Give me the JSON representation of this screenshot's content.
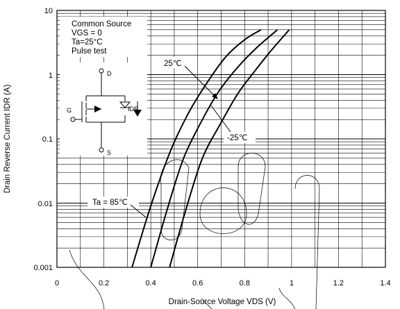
{
  "chart_data": {
    "type": "line",
    "xlabel": "Drain-Source Voltage VDS (V)",
    "ylabel": "Drain Reverse Current   IDR (A)",
    "xlim": [
      0,
      1.4
    ],
    "ylim": [
      0.001,
      10
    ],
    "y_scale": "log",
    "grid": true,
    "x_ticks": [
      "0",
      "0.2",
      "0.4",
      "0.6",
      "0.8",
      "1",
      "1.2",
      "1.4"
    ],
    "y_ticks": [
      "0.001",
      "0.01",
      "0.1",
      "1",
      "10"
    ],
    "conditions": [
      "Common Source",
      "VGS = 0",
      "Ta=25°C",
      "Pulse test"
    ],
    "series": [
      {
        "name": "Ta = 85℃",
        "x": [
          0.32,
          0.4,
          0.48,
          0.56,
          0.64,
          0.72,
          0.8,
          0.87
        ],
        "y": [
          0.001,
          0.009,
          0.06,
          0.25,
          0.75,
          1.9,
          3.5,
          5.0
        ]
      },
      {
        "name": "25℃",
        "x": [
          0.4,
          0.47,
          0.54,
          0.62,
          0.69,
          0.77,
          0.85,
          0.94
        ],
        "y": [
          0.001,
          0.008,
          0.05,
          0.2,
          0.55,
          1.3,
          2.6,
          5.0
        ]
      },
      {
        "name": "-25℃",
        "x": [
          0.48,
          0.55,
          0.62,
          0.7,
          0.77,
          0.84,
          0.91,
          0.99
        ],
        "y": [
          0.001,
          0.008,
          0.05,
          0.18,
          0.5,
          1.1,
          2.3,
          5.0
        ]
      }
    ],
    "symbol_pins": {
      "gate": "G",
      "drain": "D",
      "source": "S",
      "current": "IDR"
    }
  },
  "colors": {
    "curve": "#000000",
    "grid": "#000000",
    "background": "#ffffff"
  }
}
